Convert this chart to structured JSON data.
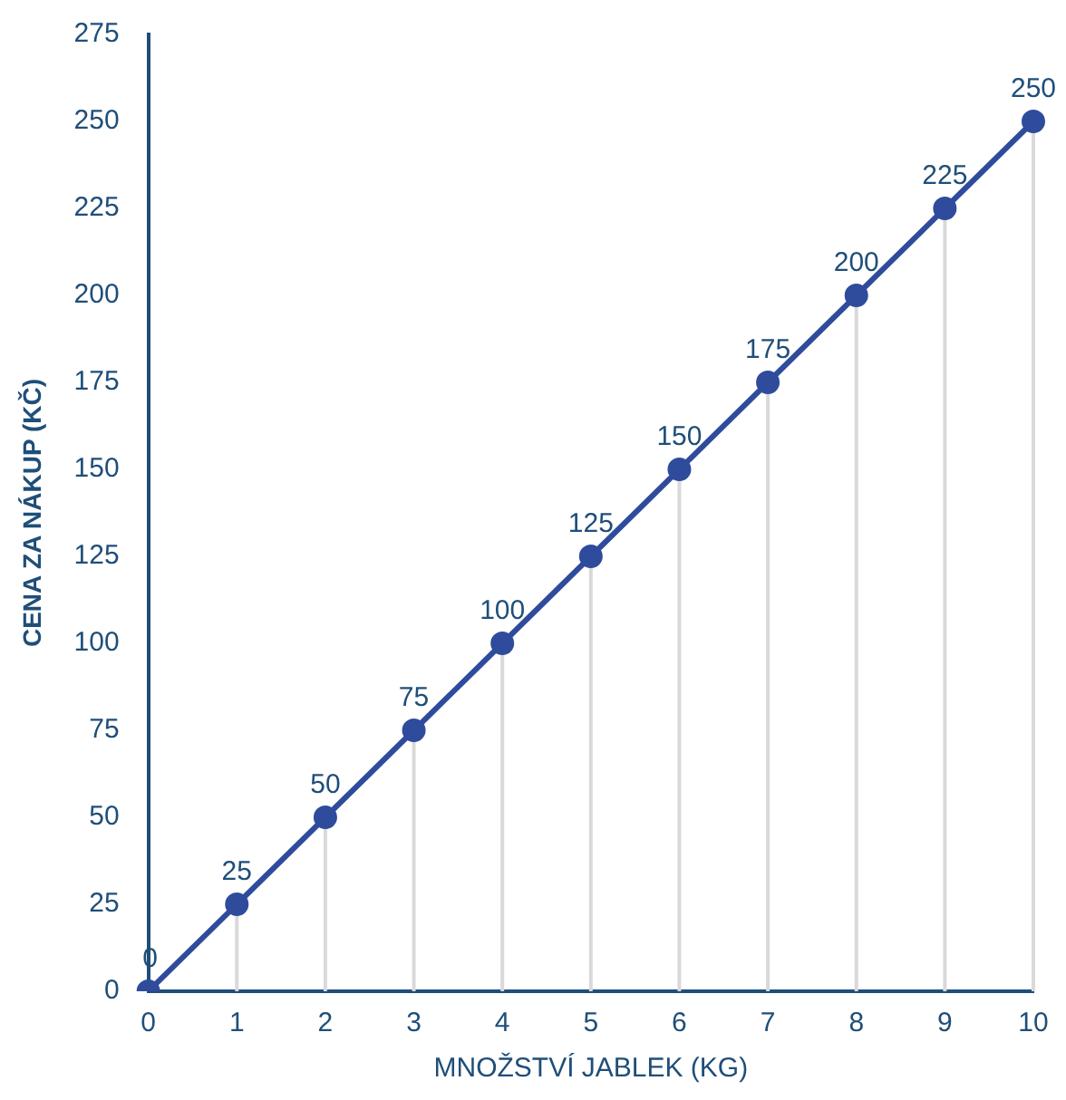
{
  "chart_data": {
    "type": "line",
    "xlabel": "MNOŽSTVÍ JABLEK (KG)",
    "ylabel": "CENA ZA NÁKUP (KČ)",
    "categories": [
      "0",
      "1",
      "2",
      "3",
      "4",
      "5",
      "6",
      "7",
      "8",
      "9",
      "10"
    ],
    "series": [
      {
        "color": "#2f4b9c",
        "values": [
          0,
          25,
          50,
          75,
          100,
          125,
          150,
          175,
          200,
          225,
          250
        ]
      }
    ],
    "ylim": [
      0,
      275
    ],
    "yticks": [
      0,
      25,
      50,
      75,
      100,
      125,
      150,
      175,
      200,
      225,
      250,
      275
    ],
    "grid": "x",
    "legend": false,
    "marker": "circle",
    "line_style": "solid",
    "data_labels": true
  }
}
